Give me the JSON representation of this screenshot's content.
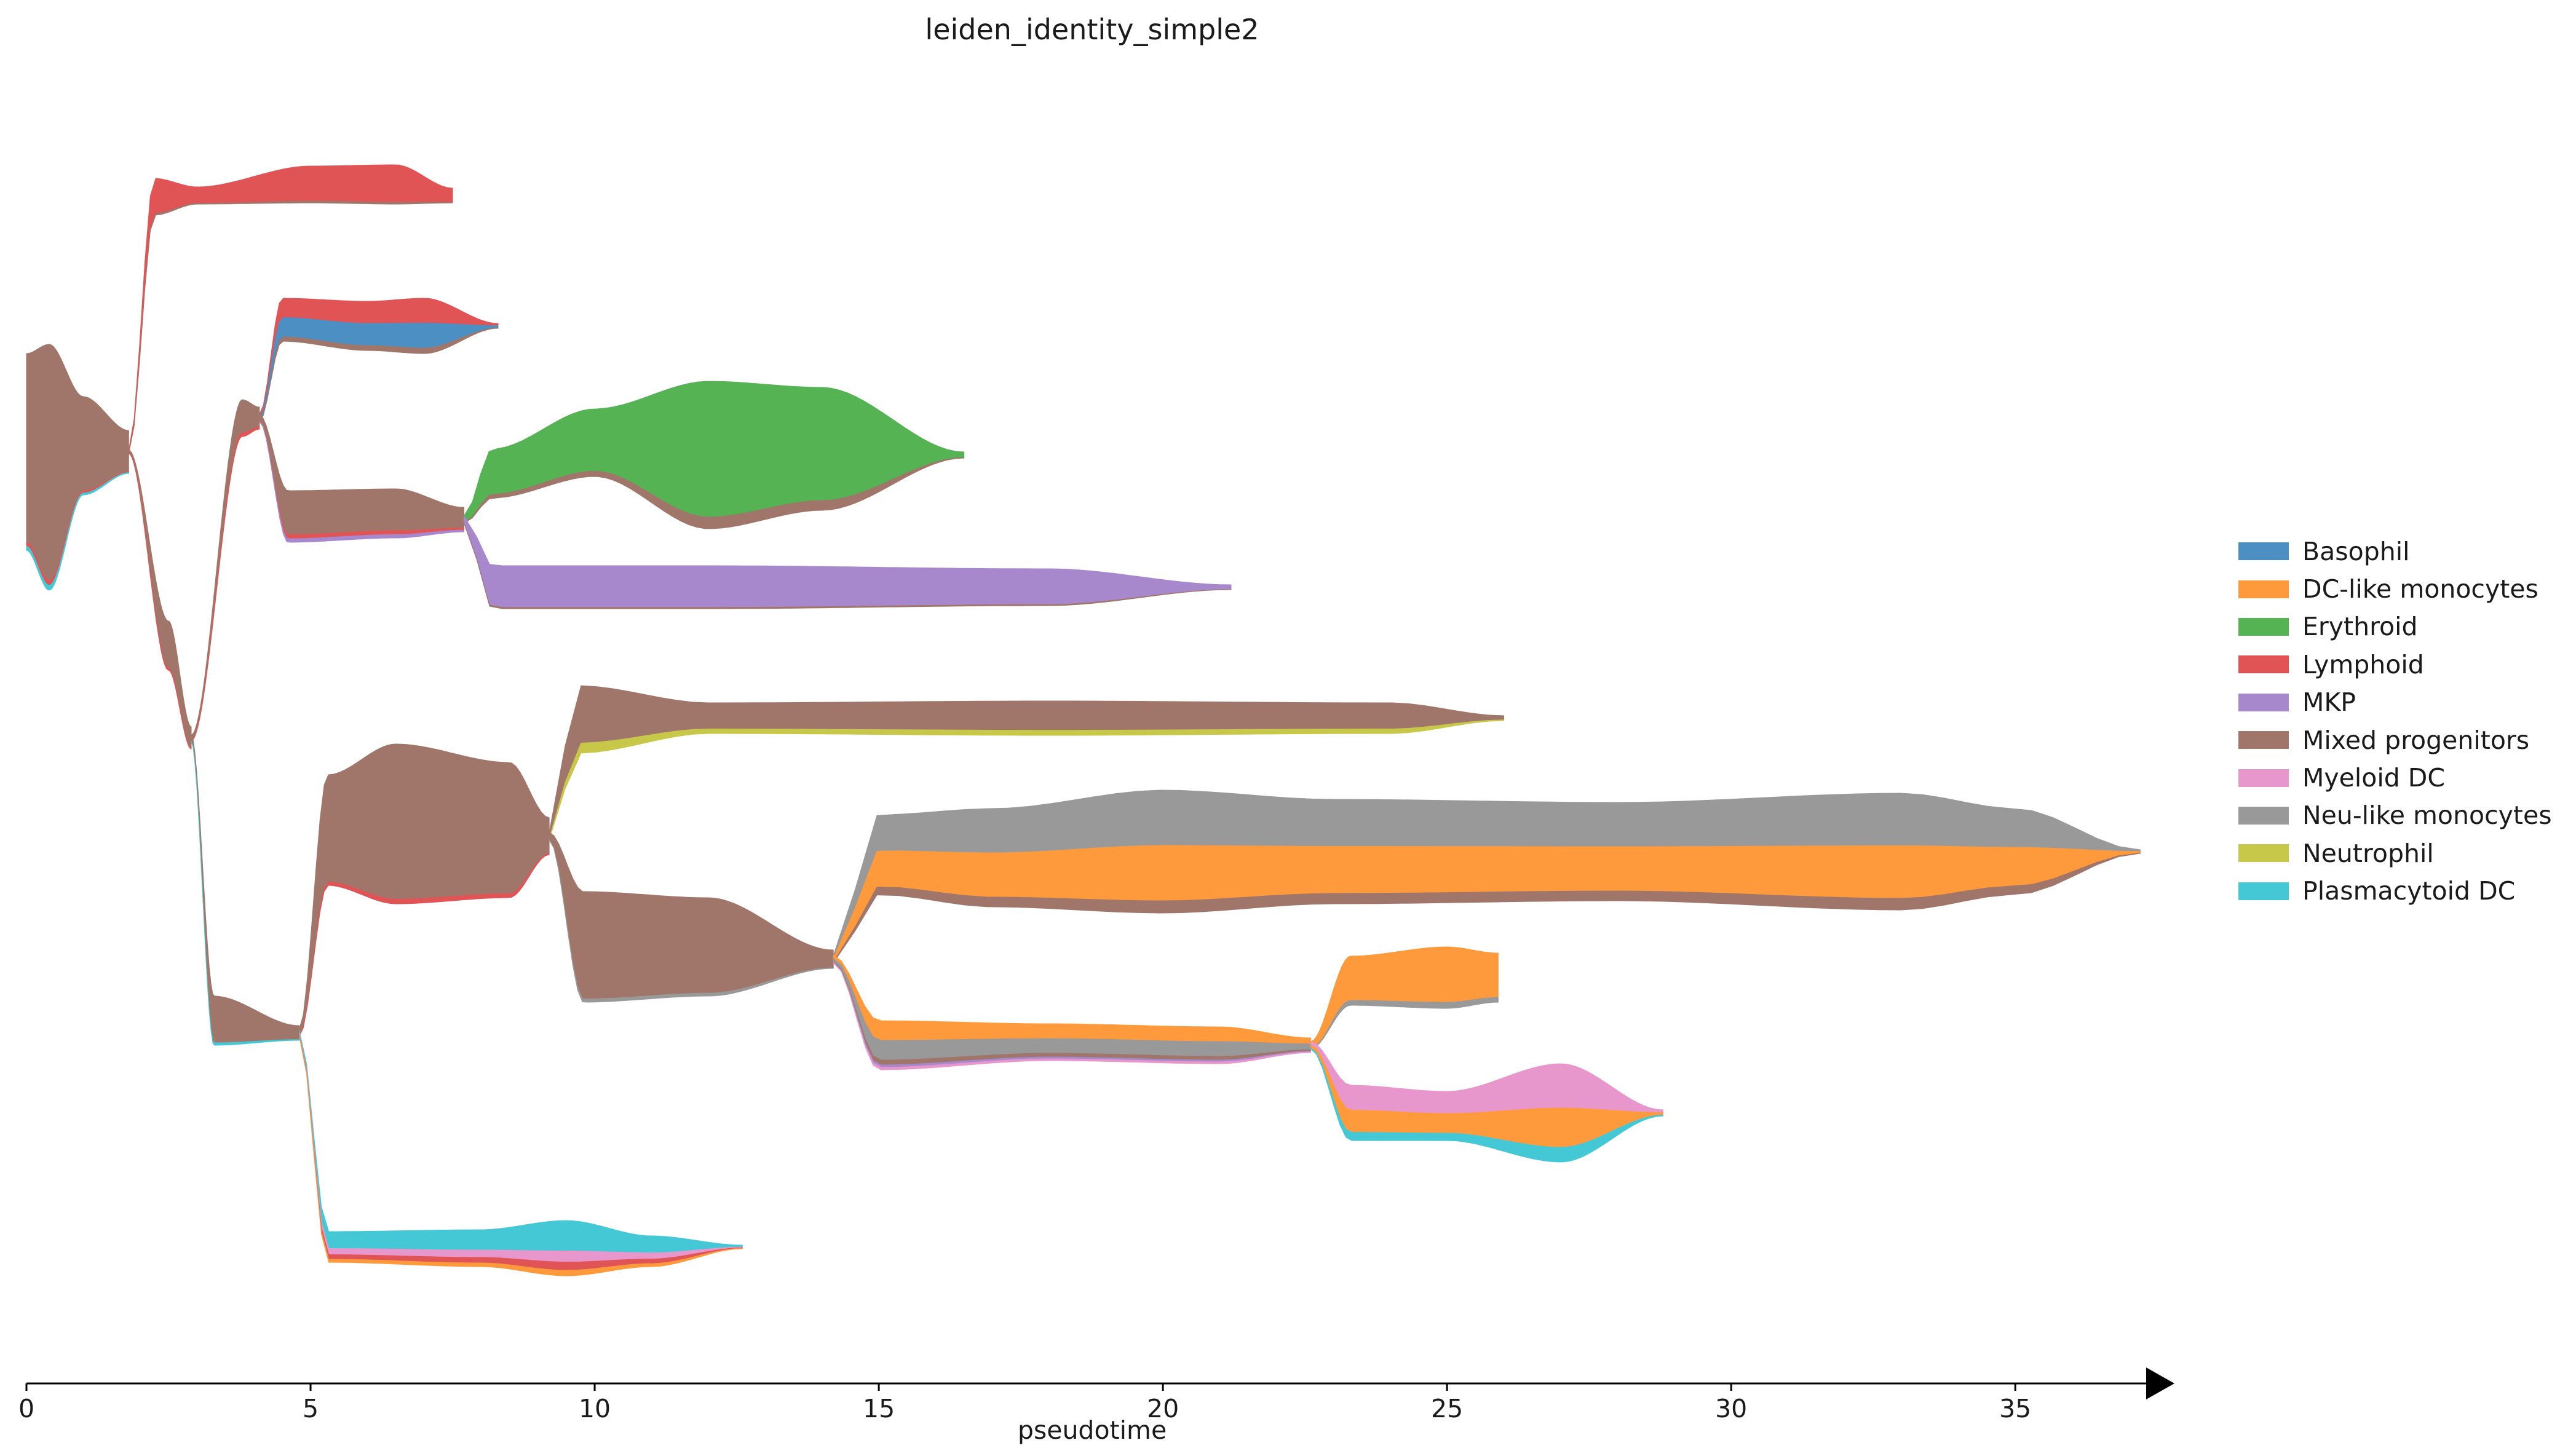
{
  "chart_data": {
    "type": "area",
    "subtype": "stream-tree",
    "title": "leiden_identity_simple2",
    "xlabel": "pseudotime",
    "xlim": [
      0,
      37
    ],
    "xticks": [
      0,
      5,
      10,
      15,
      20,
      25,
      30,
      35
    ],
    "legend_position": "right",
    "series": [
      {
        "name": "Basophil",
        "color": "#4c8fc2"
      },
      {
        "name": "DC-like monocytes",
        "color": "#ff9a3c"
      },
      {
        "name": "Erythroid",
        "color": "#55b354"
      },
      {
        "name": "Lymphoid",
        "color": "#e05456"
      },
      {
        "name": "MKP",
        "color": "#a888cc"
      },
      {
        "name": "Mixed progenitors",
        "color": "#a0766b"
      },
      {
        "name": "Myeloid DC",
        "color": "#e897cc"
      },
      {
        "name": "Neu-like monocytes",
        "color": "#999999"
      },
      {
        "name": "Neutrophil",
        "color": "#c7c84a"
      },
      {
        "name": "Plasmacytoid DC",
        "color": "#45c8d6"
      }
    ],
    "branches": [
      {
        "id": "root",
        "x": [
          0,
          1.8
        ],
        "composition": {
          "Mixed progenitors": 0.96,
          "Lymphoid": 0.02,
          "Plasmacytoid DC": 0.02
        }
      },
      {
        "id": "lymphoid-top",
        "x": [
          1.8,
          7.5
        ],
        "composition": {
          "Lymphoid": 0.95,
          "Mixed progenitors": 0.05
        }
      },
      {
        "id": "stem-a",
        "x": [
          1.8,
          2.9
        ],
        "composition": {
          "Mixed progenitors": 0.95,
          "Lymphoid": 0.05
        }
      },
      {
        "id": "stem-b",
        "x": [
          2.9,
          4.1
        ],
        "composition": {
          "Mixed progenitors": 0.9,
          "Lymphoid": 0.1
        }
      },
      {
        "id": "basophil-lymphoid",
        "x": [
          4.1,
          8.3
        ],
        "composition": {
          "Lymphoid": 0.45,
          "Basophil": 0.45,
          "Mixed progenitors": 0.1
        }
      },
      {
        "id": "mep",
        "x": [
          4.1,
          7.7
        ],
        "composition": {
          "Mixed progenitors": 0.85,
          "Lymphoid": 0.08,
          "MKP": 0.07
        }
      },
      {
        "id": "erythroid",
        "x": [
          7.7,
          16.5
        ],
        "composition": {
          "Erythroid": 0.92,
          "Mixed progenitors": 0.08
        }
      },
      {
        "id": "mkp",
        "x": [
          7.7,
          21.2
        ],
        "composition": {
          "MKP": 0.97,
          "Mixed progenitors": 0.03
        }
      },
      {
        "id": "stem-c",
        "x": [
          2.9,
          4.8
        ],
        "composition": {
          "Mixed progenitors": 0.95,
          "Plasmacytoid DC": 0.05
        }
      },
      {
        "id": "gmp",
        "x": [
          4.8,
          9.2
        ],
        "composition": {
          "Mixed progenitors": 0.97,
          "Lymphoid": 0.03
        }
      },
      {
        "id": "neutrophil",
        "x": [
          9.2,
          26.0
        ],
        "composition": {
          "Mixed progenitors": 0.85,
          "Neutrophil": 0.15
        }
      },
      {
        "id": "mono-progenitor",
        "x": [
          9.2,
          14.2
        ],
        "composition": {
          "Mixed progenitors": 0.97,
          "Neu-like monocytes": 0.03
        }
      },
      {
        "id": "mono-upper",
        "x": [
          14.2,
          37.2
        ],
        "composition": {
          "Neu-like monocytes": 0.45,
          "DC-like monocytes": 0.45,
          "Mixed progenitors": 0.1
        }
      },
      {
        "id": "mono-lower",
        "x": [
          14.2,
          22.6
        ],
        "composition": {
          "DC-like monocytes": 0.4,
          "Neu-like monocytes": 0.4,
          "Mixed progenitors": 0.1,
          "MKP": 0.05,
          "Myeloid DC": 0.05
        }
      },
      {
        "id": "dc-mono",
        "x": [
          22.6,
          25.9
        ],
        "composition": {
          "DC-like monocytes": 0.9,
          "Neu-like monocytes": 0.1
        }
      },
      {
        "id": "myeloid-dc",
        "x": [
          22.6,
          28.8
        ],
        "composition": {
          "Myeloid DC": 0.45,
          "DC-like monocytes": 0.4,
          "Plasmacytoid DC": 0.15
        }
      },
      {
        "id": "pdc",
        "x": [
          4.8,
          12.6
        ],
        "composition": {
          "Plasmacytoid DC": 0.55,
          "Myeloid DC": 0.2,
          "Lymphoid": 0.15,
          "DC-like monocytes": 0.1
        }
      }
    ]
  }
}
